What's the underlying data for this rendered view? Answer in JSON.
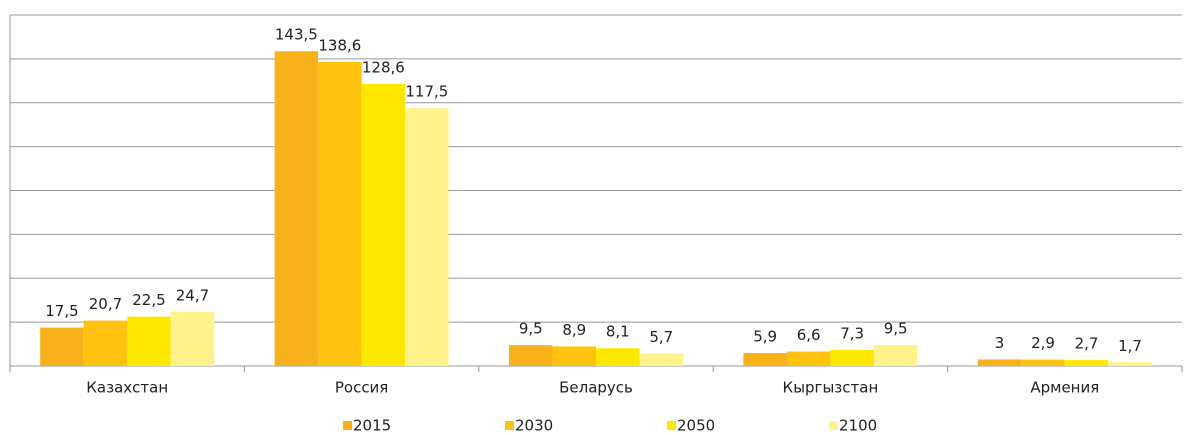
{
  "chart_data": {
    "type": "bar",
    "categories": [
      "Казахстан",
      "Россия",
      "Беларусь",
      "Кыргызстан",
      "Армения"
    ],
    "series": [
      {
        "name": "2015",
        "color": "#f7b21b",
        "values": [
          17.5,
          143.5,
          9.5,
          5.9,
          3
        ],
        "value_labels": [
          "17,5",
          "143,5",
          "9,5",
          "5,9",
          "3"
        ]
      },
      {
        "name": "2030",
        "color": "#ffc20e",
        "values": [
          20.7,
          138.6,
          8.9,
          6.6,
          2.9
        ],
        "value_labels": [
          "20,7",
          "138,6",
          "8,9",
          "6,6",
          "2,9"
        ]
      },
      {
        "name": "2050",
        "color": "#ffe800",
        "values": [
          22.5,
          128.6,
          8.1,
          7.3,
          2.7
        ],
        "value_labels": [
          "22,5",
          "128,6",
          "8,1",
          "7,3",
          "2,7"
        ]
      },
      {
        "name": "2100",
        "color": "#fff28a",
        "values": [
          24.7,
          117.5,
          5.7,
          9.5,
          1.7
        ],
        "value_labels": [
          "24,7",
          "117,5",
          "5,7",
          "9,5",
          "1,7"
        ]
      }
    ],
    "ylim": [
      0,
      160
    ],
    "yticks": [
      0,
      20,
      40,
      60,
      80,
      100,
      120,
      140,
      160
    ],
    "grid": true,
    "legend": "bottom"
  }
}
